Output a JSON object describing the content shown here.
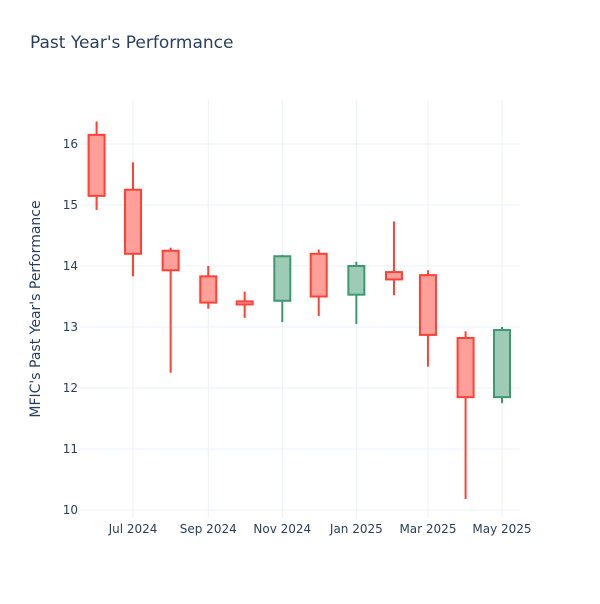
{
  "chart_data": {
    "type": "candlestick",
    "title": "Past Year's Performance",
    "ylabel": "MFIC's Past Year's Performance",
    "xlabel": "",
    "ylim": [
      9.9,
      16.7
    ],
    "yticks": [
      10,
      11,
      12,
      13,
      14,
      15,
      16
    ],
    "xticks": [
      {
        "label": "Jul 2024",
        "date": "2024-07-01"
      },
      {
        "label": "Sep 2024",
        "date": "2024-09-01"
      },
      {
        "label": "Nov 2024",
        "date": "2024-11-01"
      },
      {
        "label": "Jan 2025",
        "date": "2025-01-01"
      },
      {
        "label": "Mar 2025",
        "date": "2025-03-01"
      },
      {
        "label": "May 2025",
        "date": "2025-05-01"
      }
    ],
    "grid": true,
    "colors": {
      "increasing": "#3d9970",
      "decreasing": "#ff4136",
      "increasing_fill": "#9ecbb5",
      "decreasing_fill": "#ff9f9a"
    },
    "candles": [
      {
        "date": "2024-06-01",
        "open": 16.15,
        "high": 16.37,
        "low": 14.92,
        "close": 15.15
      },
      {
        "date": "2024-07-01",
        "open": 15.25,
        "high": 15.7,
        "low": 13.83,
        "close": 14.2
      },
      {
        "date": "2024-08-01",
        "open": 14.25,
        "high": 14.3,
        "low": 12.25,
        "close": 13.93
      },
      {
        "date": "2024-09-01",
        "open": 13.83,
        "high": 14.0,
        "low": 13.3,
        "close": 13.4
      },
      {
        "date": "2024-10-01",
        "open": 13.42,
        "high": 13.58,
        "low": 13.15,
        "close": 13.37
      },
      {
        "date": "2024-11-01",
        "open": 13.43,
        "high": 14.18,
        "low": 13.08,
        "close": 14.16
      },
      {
        "date": "2024-12-01",
        "open": 14.2,
        "high": 14.27,
        "low": 13.18,
        "close": 13.5
      },
      {
        "date": "2025-01-01",
        "open": 13.53,
        "high": 14.07,
        "low": 13.05,
        "close": 14.0
      },
      {
        "date": "2025-02-01",
        "open": 13.9,
        "high": 14.73,
        "low": 13.52,
        "close": 13.78
      },
      {
        "date": "2025-03-01",
        "open": 13.85,
        "high": 13.93,
        "low": 12.35,
        "close": 12.87
      },
      {
        "date": "2025-04-01",
        "open": 12.82,
        "high": 12.93,
        "low": 10.18,
        "close": 11.85
      },
      {
        "date": "2025-05-01",
        "open": 11.85,
        "high": 13.0,
        "low": 11.75,
        "close": 12.95
      }
    ]
  }
}
